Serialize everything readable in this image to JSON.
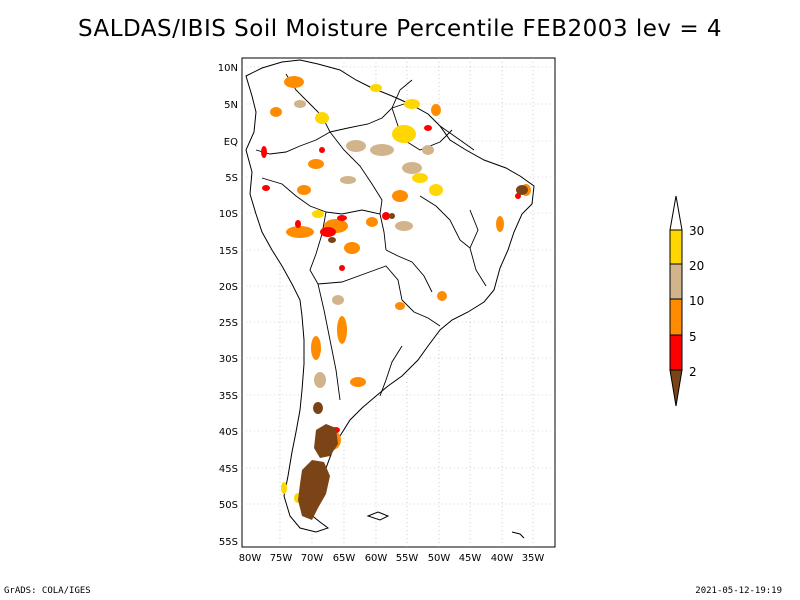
{
  "title": "SALDAS/IBIS Soil Moisture Percentile FEB2003 lev = 4",
  "colors": {
    "p2": "#7a4416",
    "p5": "#ff0000",
    "p10": "#ff8c00",
    "p20": "#d2b48c",
    "p30": "#ffd700",
    "above": "#ffffff"
  },
  "lat_labels": [
    "10N",
    "5N",
    "EQ",
    "5S",
    "10S",
    "15S",
    "20S",
    "25S",
    "30S",
    "35S",
    "40S",
    "45S",
    "50S",
    "55S"
  ],
  "lon_labels": [
    "80W",
    "75W",
    "70W",
    "65W",
    "60W",
    "55W",
    "50W",
    "45W",
    "40W",
    "35W"
  ],
  "legend": {
    "labels": [
      "30",
      "20",
      "10",
      "5",
      "2"
    ]
  },
  "footer": {
    "left": "GrADS: COLA/IGES",
    "right": "2021-05-12-19:19"
  }
}
